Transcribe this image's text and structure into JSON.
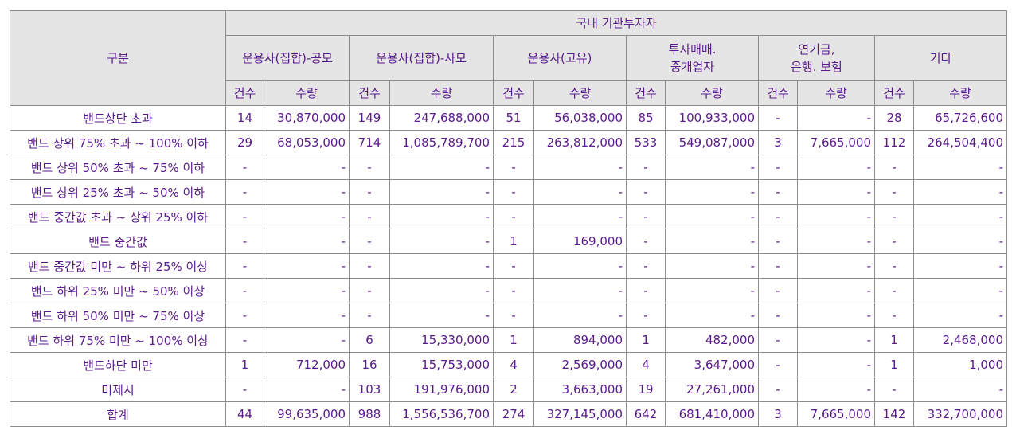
{
  "header": {
    "category": "구분",
    "group": "국내 기관투자자",
    "sub_groups": [
      "운용사(집합)-공모",
      "운용사(집합)-사모",
      "운용사(고유)",
      "투자매매.\n중개업자",
      "연기금,\n은행. 보험",
      "기타"
    ],
    "count_label": "건수",
    "qty_label": "수량"
  },
  "rows": [
    {
      "label": "밴드상단 초과",
      "cells": [
        "14",
        "30,870,000",
        "149",
        "247,688,000",
        "51",
        "56,038,000",
        "85",
        "100,933,000",
        "-",
        "-",
        "28",
        "65,726,600"
      ]
    },
    {
      "label": "밴드 상위 75% 초과 ~ 100% 이하",
      "cells": [
        "29",
        "68,053,000",
        "714",
        "1,085,789,700",
        "215",
        "263,812,000",
        "533",
        "549,087,000",
        "3",
        "7,665,000",
        "112",
        "264,504,400"
      ]
    },
    {
      "label": "밴드 상위 50% 초과 ~ 75% 이하",
      "cells": [
        "-",
        "-",
        "-",
        "-",
        "-",
        "-",
        "-",
        "-",
        "-",
        "-",
        "-",
        "-"
      ]
    },
    {
      "label": "밴드 상위 25% 초과 ~ 50% 이하",
      "cells": [
        "-",
        "-",
        "-",
        "-",
        "-",
        "-",
        "-",
        "-",
        "-",
        "-",
        "-",
        "-"
      ]
    },
    {
      "label": "밴드 중간값 초과 ~ 상위 25% 이하",
      "cells": [
        "-",
        "-",
        "-",
        "-",
        "-",
        "-",
        "-",
        "-",
        "-",
        "-",
        "-",
        "-"
      ]
    },
    {
      "label": "밴드 중간값",
      "cells": [
        "-",
        "-",
        "-",
        "-",
        "1",
        "169,000",
        "-",
        "-",
        "-",
        "-",
        "-",
        "-"
      ]
    },
    {
      "label": "밴드 중간값 미만 ~ 하위 25% 이상",
      "cells": [
        "-",
        "-",
        "-",
        "-",
        "-",
        "-",
        "-",
        "-",
        "-",
        "-",
        "-",
        "-"
      ]
    },
    {
      "label": "밴드 하위 25% 미만 ~ 50% 이상",
      "cells": [
        "-",
        "-",
        "-",
        "-",
        "-",
        "-",
        "-",
        "-",
        "-",
        "-",
        "-",
        "-"
      ]
    },
    {
      "label": "밴드 하위 50% 미만 ~ 75% 이상",
      "cells": [
        "-",
        "-",
        "-",
        "-",
        "-",
        "-",
        "-",
        "-",
        "-",
        "-",
        "-",
        "-"
      ]
    },
    {
      "label": "밴드 하위 75% 미만 ~ 100% 이상",
      "cells": [
        "-",
        "-",
        "6",
        "15,330,000",
        "1",
        "894,000",
        "1",
        "482,000",
        "-",
        "-",
        "1",
        "2,468,000"
      ]
    },
    {
      "label": "밴드하단 미만",
      "cells": [
        "1",
        "712,000",
        "16",
        "15,753,000",
        "4",
        "2,569,000",
        "4",
        "3,647,000",
        "-",
        "-",
        "1",
        "1,000"
      ]
    },
    {
      "label": "미제시",
      "cells": [
        "-",
        "-",
        "103",
        "191,976,000",
        "2",
        "3,663,000",
        "19",
        "27,261,000",
        "-",
        "-",
        "-",
        "-"
      ]
    },
    {
      "label": "합계",
      "cells": [
        "44",
        "99,635,000",
        "988",
        "1,556,536,700",
        "274",
        "327,145,000",
        "642",
        "681,410,000",
        "3",
        "7,665,000",
        "142",
        "332,700,000"
      ]
    }
  ],
  "colors": {
    "text": "#5a1a8c",
    "header_bg": "#e5e5e5",
    "border": "#8c8c8c"
  }
}
